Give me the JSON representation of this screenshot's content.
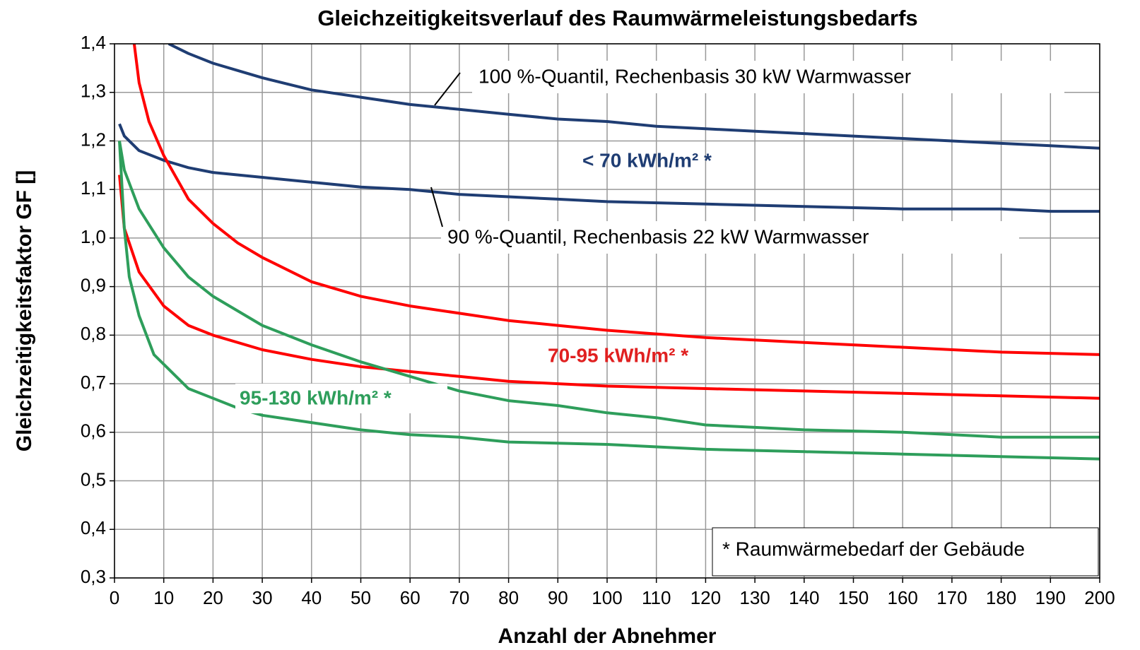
{
  "chart_data": {
    "type": "line",
    "title": "Gleichzeitigkeitsverlauf des Raumwärmeleistungsbedarfs",
    "xlabel": "Anzahl der Abnehmer",
    "ylabel": "Gleichzeitigkeitsfaktor GF []",
    "xlim": [
      0,
      200
    ],
    "xticks": [
      0,
      10,
      20,
      30,
      40,
      50,
      60,
      70,
      80,
      90,
      100,
      110,
      120,
      130,
      140,
      150,
      160,
      170,
      180,
      190,
      200
    ],
    "ylim": [
      0.3,
      1.4
    ],
    "yticks": [
      {
        "value": 0.3,
        "label": "0,3"
      },
      {
        "value": 0.4,
        "label": "0,4"
      },
      {
        "value": 0.5,
        "label": "0,5"
      },
      {
        "value": 0.6,
        "label": "0,6"
      },
      {
        "value": 0.7,
        "label": "0,7"
      },
      {
        "value": 0.8,
        "label": "0,8"
      },
      {
        "value": 0.9,
        "label": "0,9"
      },
      {
        "value": 1.0,
        "label": "1,0"
      },
      {
        "value": 1.1,
        "label": "1,1"
      },
      {
        "value": 1.2,
        "label": "1,2"
      },
      {
        "value": 1.3,
        "label": "1,3"
      },
      {
        "value": 1.4,
        "label": "1,4"
      }
    ],
    "grid": true,
    "series": [
      {
        "color": "#1f3d73",
        "x": [
          11,
          15,
          20,
          25,
          30,
          40,
          50,
          60,
          70,
          80,
          90,
          100,
          110,
          120,
          130,
          140,
          150,
          160,
          170,
          180,
          190,
          200
        ],
        "values": [
          1.4,
          1.38,
          1.36,
          1.345,
          1.33,
          1.305,
          1.29,
          1.275,
          1.265,
          1.255,
          1.245,
          1.24,
          1.23,
          1.225,
          1.22,
          1.215,
          1.21,
          1.205,
          1.2,
          1.195,
          1.19,
          1.185
        ]
      },
      {
        "color": "#1f3d73",
        "x": [
          1,
          2,
          5,
          10,
          15,
          20,
          30,
          40,
          50,
          60,
          70,
          80,
          90,
          100,
          120,
          140,
          160,
          180,
          190,
          200
        ],
        "values": [
          1.235,
          1.21,
          1.18,
          1.16,
          1.145,
          1.135,
          1.125,
          1.115,
          1.105,
          1.1,
          1.09,
          1.085,
          1.08,
          1.075,
          1.07,
          1.065,
          1.06,
          1.06,
          1.055,
          1.055
        ]
      },
      {
        "color": "#ff0000",
        "x": [
          4,
          5,
          7,
          10,
          15,
          20,
          25,
          30,
          40,
          50,
          60,
          70,
          80,
          90,
          100,
          120,
          140,
          160,
          180,
          200
        ],
        "values": [
          1.4,
          1.32,
          1.24,
          1.17,
          1.08,
          1.03,
          0.99,
          0.96,
          0.91,
          0.88,
          0.86,
          0.845,
          0.83,
          0.82,
          0.81,
          0.795,
          0.785,
          0.775,
          0.765,
          0.76
        ]
      },
      {
        "color": "#ff0000",
        "x": [
          1,
          2,
          5,
          10,
          15,
          20,
          30,
          40,
          50,
          60,
          70,
          80,
          90,
          100,
          120,
          140,
          160,
          180,
          200
        ],
        "values": [
          1.13,
          1.02,
          0.93,
          0.86,
          0.82,
          0.8,
          0.77,
          0.75,
          0.735,
          0.725,
          0.715,
          0.705,
          0.7,
          0.695,
          0.69,
          0.685,
          0.68,
          0.675,
          0.67
        ]
      },
      {
        "color": "#2e9e5b",
        "x": [
          1,
          2,
          5,
          10,
          15,
          20,
          30,
          40,
          50,
          60,
          70,
          80,
          90,
          100,
          110,
          120,
          130,
          140,
          160,
          180,
          200
        ],
        "values": [
          1.2,
          1.14,
          1.06,
          0.98,
          0.92,
          0.88,
          0.82,
          0.78,
          0.745,
          0.715,
          0.685,
          0.665,
          0.655,
          0.64,
          0.63,
          0.615,
          0.61,
          0.605,
          0.6,
          0.59,
          0.59
        ]
      },
      {
        "color": "#2e9e5b",
        "x": [
          1,
          2,
          3,
          5,
          8,
          10,
          15,
          20,
          25,
          30,
          40,
          50,
          60,
          70,
          80,
          100,
          120,
          140,
          160,
          180,
          200
        ],
        "values": [
          1.2,
          1.02,
          0.92,
          0.84,
          0.76,
          0.74,
          0.69,
          0.67,
          0.65,
          0.635,
          0.62,
          0.605,
          0.595,
          0.59,
          0.58,
          0.575,
          0.565,
          0.56,
          0.555,
          0.55,
          0.545
        ]
      }
    ],
    "annotations": [
      "100 %-Quantil, Rechenbasis 30 kW Warmwasser",
      "< 70 kWh/m² *",
      "90 %-Quantil, Rechenbasis 22 kW Warmwasser",
      "70-95 kWh/m² *",
      "95-130 kWh/m² *",
      "* Raumwärmebedarf der Gebäude"
    ]
  }
}
